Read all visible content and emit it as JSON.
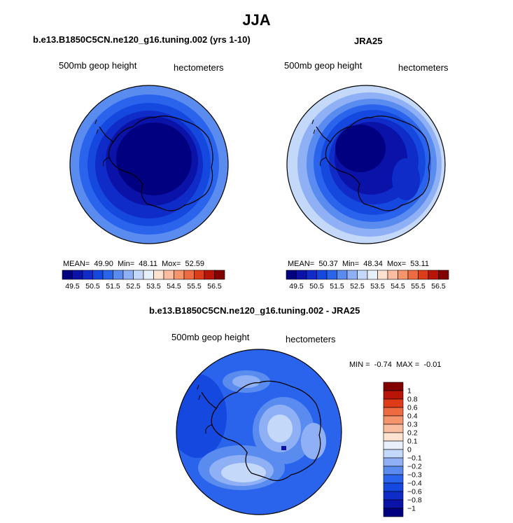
{
  "title": "JJA",
  "chart_data": [
    {
      "type": "heatmap",
      "projection": "south-polar-stereographic",
      "title": "b.e13.B1850C5CN.ne120_g16.tuning.002 (yrs 1-10)",
      "variable_label": "500mb geop height",
      "units_label": "hectometers",
      "stats": {
        "mean_label": "MEAN=",
        "mean": "49.90",
        "min_label": "Min=",
        "min": "48.11",
        "max_label": "Mox=",
        "max": "52.59"
      },
      "contour_levels": [
        49.5,
        50,
        50.5,
        51,
        51.5,
        52,
        52.5,
        53,
        53.5,
        54,
        54.5,
        55,
        55.5,
        56,
        56.5
      ],
      "colorbar_labels": [
        "49.5",
        "50.5",
        "51.5",
        "52.5",
        "53.5",
        "54.5",
        "55.5",
        "56.5"
      ]
    },
    {
      "type": "heatmap",
      "projection": "south-polar-stereographic",
      "title": "JRA25",
      "variable_label": "500mb geop height",
      "units_label": "hectometers",
      "stats": {
        "mean_label": "MEAN=",
        "mean": "50.37",
        "min_label": "Min=",
        "min": "48.34",
        "max_label": "Mox=",
        "max": "53.11"
      },
      "contour_levels": [
        49.5,
        50,
        50.5,
        51,
        51.5,
        52,
        52.5,
        53,
        53.5,
        54,
        54.5,
        55,
        55.5,
        56,
        56.5
      ],
      "colorbar_labels": [
        "49.5",
        "50.5",
        "51.5",
        "52.5",
        "53.5",
        "54.5",
        "55.5",
        "56.5"
      ]
    },
    {
      "type": "heatmap",
      "projection": "south-polar-stereographic",
      "title": "b.e13.B1850C5CN.ne120_g16.tuning.002 - JRA25",
      "variable_label": "500mb geop height",
      "units_label": "hectometers",
      "stats": {
        "min_label": "MIN =",
        "min": "-0.74",
        "max_label": "MAX =",
        "max": "-0.01"
      },
      "contour_levels": [
        -1,
        -0.8,
        -0.6,
        -0.4,
        -0.3,
        -0.2,
        -0.1,
        0,
        0.1,
        0.2,
        0.3,
        0.4,
        0.6,
        0.8,
        1
      ],
      "colorbar_labels": [
        "1",
        "0.8",
        "0.6",
        "0.4",
        "0.3",
        "0.2",
        "0.1",
        "0",
        "−0.1",
        "−0.2",
        "−0.3",
        "−0.4",
        "−0.6",
        "−0.8",
        "−1"
      ]
    }
  ],
  "colors": {
    "scale": [
      "#000080",
      "#0a12a8",
      "#0f2bc8",
      "#1448de",
      "#2a64ec",
      "#5a8cf0",
      "#8fb0f4",
      "#c4d8fa",
      "#e8f0fc",
      "#fde2d0",
      "#fbbda0",
      "#f6946c",
      "#ee6a40",
      "#de3c18",
      "#b81508",
      "#820000"
    ],
    "land_outline": "#000000"
  }
}
